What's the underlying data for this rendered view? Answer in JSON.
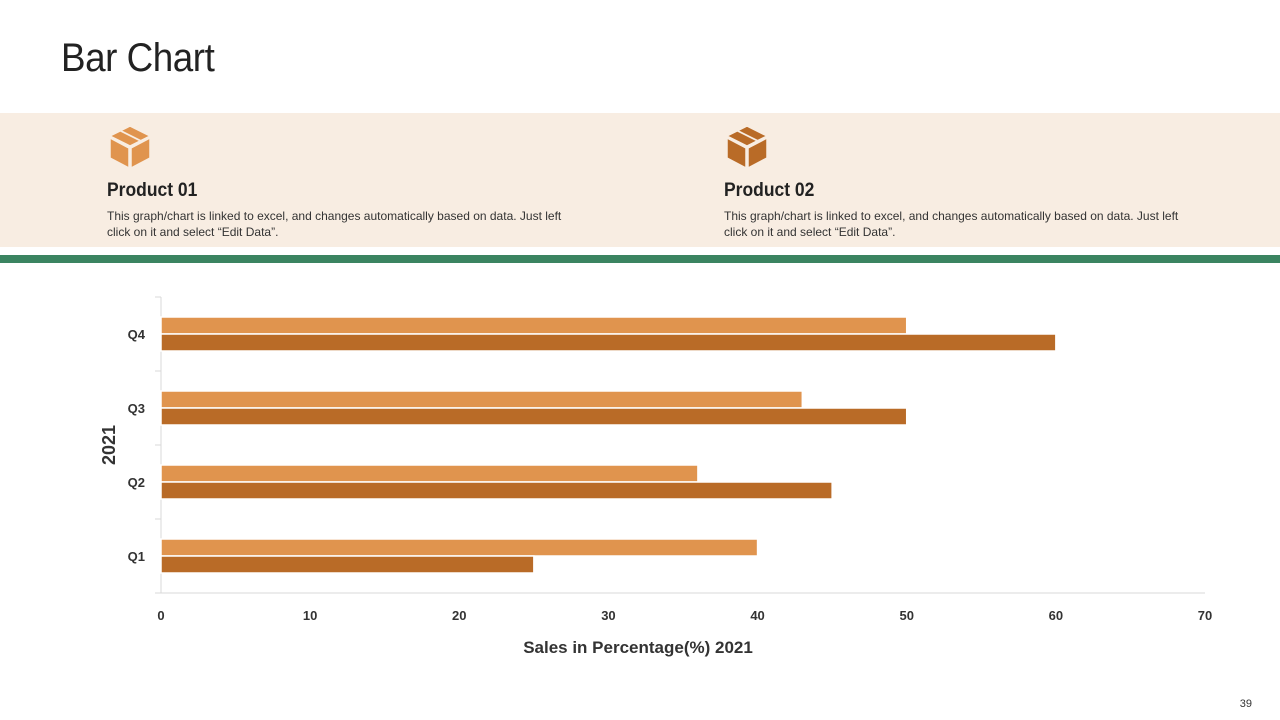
{
  "page": {
    "title": "Bar Chart",
    "page_number": "39"
  },
  "products": [
    {
      "name": "Product 01",
      "description": "This graph/chart is linked to excel, and changes automatically based on data. Just left click on it and select “Edit Data”.",
      "icon": "box-icon",
      "icon_color": "#e0944e"
    },
    {
      "name": "Product 02",
      "description": "This graph/chart is linked to excel, and changes automatically based on data. Just left click on it and select “Edit Data”.",
      "icon": "box-icon",
      "icon_color": "#b96b27"
    }
  ],
  "colors": {
    "band": "#f8ede2",
    "accent_green": "#3b8461",
    "series_light": "#e0944e",
    "series_dark": "#b96b27"
  },
  "chart_data": {
    "type": "bar",
    "orientation": "horizontal",
    "categories": [
      "Q1",
      "Q2",
      "Q3",
      "Q4"
    ],
    "series": [
      {
        "values": [
          40,
          36,
          43,
          50
        ],
        "color": "#e0944e"
      },
      {
        "values": [
          25,
          45,
          50,
          60
        ],
        "color": "#b96b27"
      }
    ],
    "xlabel": "Sales in Percentage(%) 2021",
    "ylabel": "2021",
    "xlim": [
      0,
      70
    ],
    "xticks": [
      0,
      10,
      20,
      30,
      40,
      50,
      60,
      70
    ],
    "grid": false,
    "legend": "none"
  }
}
